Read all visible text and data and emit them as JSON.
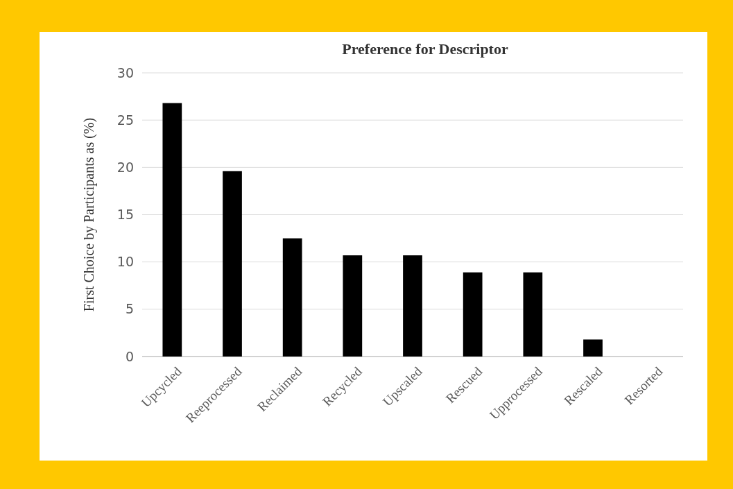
{
  "chart_data": {
    "type": "bar",
    "title": "Preference for Descriptor",
    "ylabel": "First Choice by Participants as (%)",
    "categories": [
      "Upcycled",
      "Reeprocessed",
      "Reclaimed",
      "Recycled",
      "Upscaled",
      "Rescued",
      "Upprocessed",
      "Rescaled",
      "Resorted"
    ],
    "values": [
      26.8,
      19.6,
      12.5,
      10.7,
      10.7,
      8.9,
      8.9,
      1.8,
      0
    ],
    "color": "#000000",
    "ylim": [
      0,
      30
    ],
    "yticks": [
      0,
      5,
      10,
      15,
      20,
      25,
      30
    ],
    "grid": "y"
  }
}
